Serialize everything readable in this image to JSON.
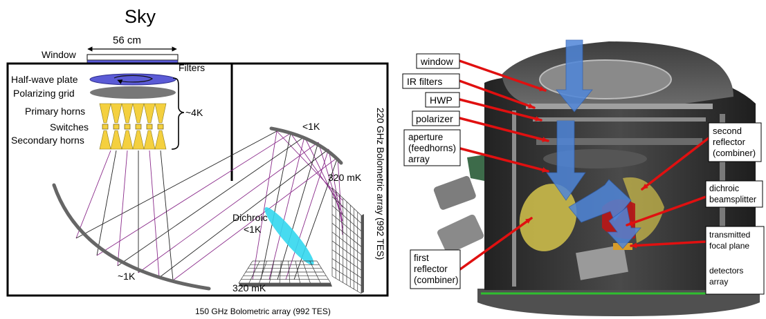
{
  "left_diagram": {
    "sky_label": "Sky",
    "width_label": "56 cm",
    "window_label": "Window",
    "filters_label": "Filters",
    "hwp_label": "Half-wave plate",
    "grid_label": "Polarizing grid",
    "primary_horns_label": "Primary horns",
    "switches_label": "Switches",
    "secondary_horns_label": "Secondary horns",
    "temp_4k_label": "~4K",
    "temp_mirror_top_label": "<1K",
    "temp_mirror_bottom_label": "~1K",
    "dichroic_label": "Dichroic",
    "dichroic_temp_label": "<1K",
    "temp_320_right_label": "320 mK",
    "temp_320_bottom_label": "320 mK",
    "vertical_array_label": "220 GHz Bolometric array (992 TES)",
    "horizontal_array_label": "150 GHz Bolometric array (992 TES)",
    "colors": {
      "hwp": "#5b5bd6",
      "grid": "#777777",
      "horns": "#f4d03f",
      "dichroic": "#33d7ee",
      "ray_purple": "#8a2a8a",
      "ray_black": "#222222",
      "mirror": "#666666",
      "frame": "#000000"
    }
  },
  "right_diagram": {
    "callouts": {
      "window": "window",
      "ir_filters": "IR filters",
      "hwp": "HWP",
      "polarizer": "polarizer",
      "aperture_line1": "aperture",
      "aperture_line2": "(feedhorns)",
      "aperture_line3": "array",
      "first_line1": "first",
      "first_line2": "reflector",
      "first_line3": "(combiner)",
      "second_line1": "second",
      "second_line2": "reflector",
      "second_line3": "(combiner)",
      "dichroic_line1": "dichroic",
      "dichroic_line2": "beamsplitter",
      "transmitted_line1": "transmitted",
      "transmitted_line2": "focal plane",
      "detectors_line1": "detectors",
      "detectors_line2": "array"
    },
    "colors": {
      "pointer": "#e01010",
      "beam": "#4f86d9",
      "body": "#3a3a3a",
      "reflector": "#c8b84a",
      "dichroic": "#b51818"
    }
  }
}
